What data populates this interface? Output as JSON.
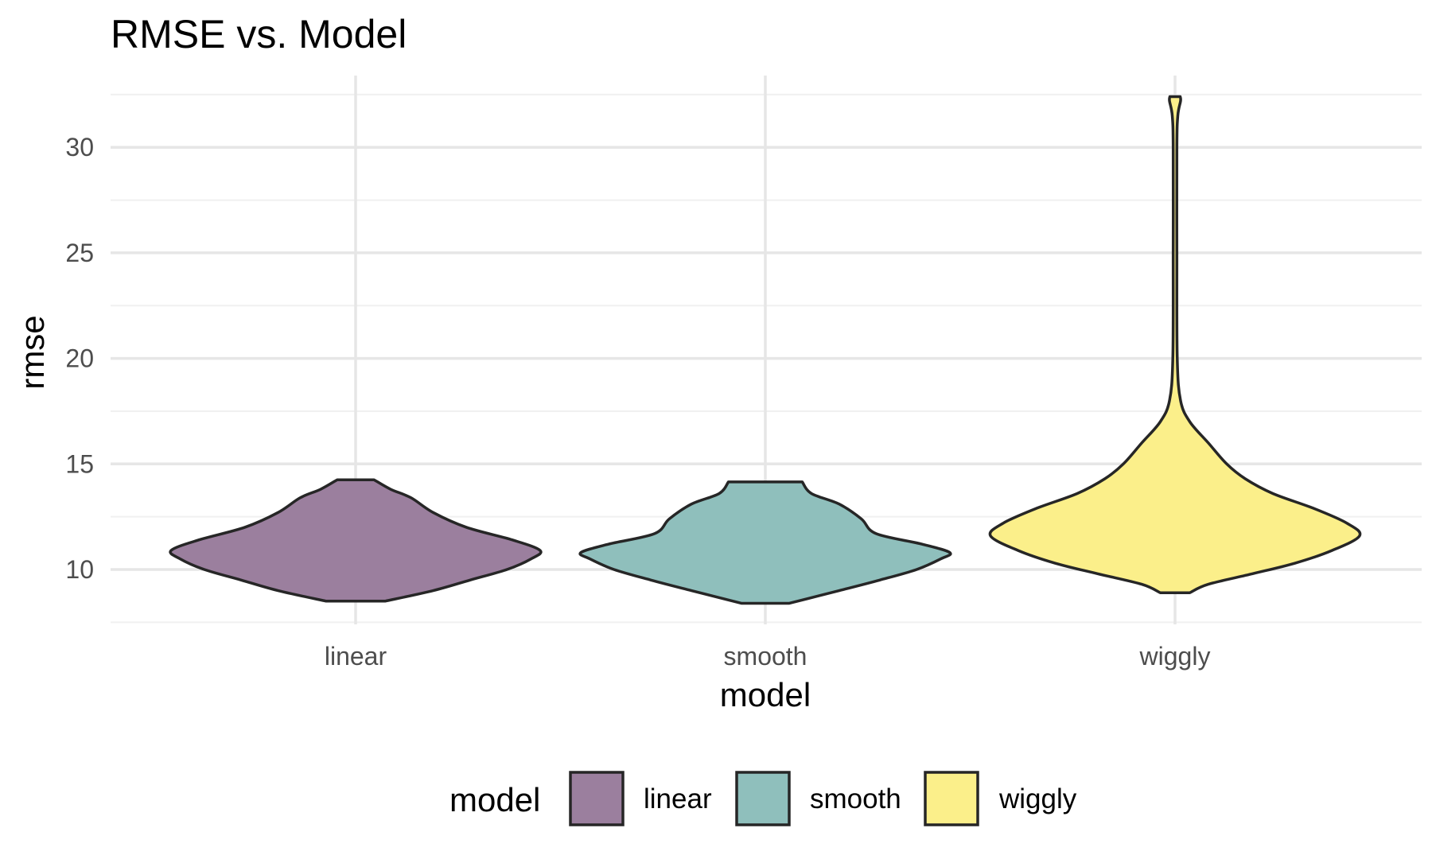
{
  "chart_data": {
    "type": "violin",
    "title": "RMSE vs. Model",
    "xlabel": "model",
    "ylabel": "rmse",
    "categories": [
      "linear",
      "smooth",
      "wiggly"
    ],
    "ylim": [
      7.4,
      33.4
    ],
    "yticks": [
      10,
      15,
      20,
      25,
      30
    ],
    "grid": true,
    "legend": {
      "title": "model",
      "position": "bottom",
      "entries": [
        "linear",
        "smooth",
        "wiggly"
      ]
    },
    "colors": {
      "linear": "#9B7F9E",
      "smooth": "#8FBFBC",
      "wiggly": "#FBEF8A",
      "outline": "#262626",
      "grid_major": "#E6E6E6",
      "grid_minor": "#F0F0F0",
      "tick_text": "#4D4D4D",
      "title_text": "#000000"
    },
    "series": [
      {
        "name": "linear",
        "ymin": 8.5,
        "ymax": 14.25,
        "density_profile": [
          [
            8.5,
            0.16
          ],
          [
            9.0,
            0.42
          ],
          [
            9.5,
            0.62
          ],
          [
            10.0,
            0.82
          ],
          [
            10.5,
            0.95
          ],
          [
            10.9,
            1.0
          ],
          [
            11.4,
            0.85
          ],
          [
            12.0,
            0.6
          ],
          [
            12.7,
            0.42
          ],
          [
            13.4,
            0.3
          ],
          [
            13.8,
            0.19
          ],
          [
            14.25,
            0.1
          ]
        ]
      },
      {
        "name": "smooth",
        "ymin": 8.4,
        "ymax": 14.15,
        "density_profile": [
          [
            8.4,
            0.13
          ],
          [
            9.0,
            0.4
          ],
          [
            9.5,
            0.62
          ],
          [
            10.0,
            0.82
          ],
          [
            10.5,
            0.95
          ],
          [
            10.8,
            1.0
          ],
          [
            11.2,
            0.85
          ],
          [
            11.7,
            0.6
          ],
          [
            12.4,
            0.52
          ],
          [
            13.1,
            0.4
          ],
          [
            13.6,
            0.25
          ],
          [
            14.15,
            0.2
          ]
        ]
      },
      {
        "name": "wiggly",
        "ymin": 8.9,
        "ymax": 32.4,
        "density_profile": [
          [
            8.9,
            0.08
          ],
          [
            9.3,
            0.18
          ],
          [
            9.8,
            0.42
          ],
          [
            10.3,
            0.65
          ],
          [
            10.9,
            0.85
          ],
          [
            11.6,
            1.0
          ],
          [
            12.2,
            0.93
          ],
          [
            12.9,
            0.75
          ],
          [
            13.6,
            0.53
          ],
          [
            14.3,
            0.38
          ],
          [
            15.0,
            0.28
          ],
          [
            16.0,
            0.18
          ],
          [
            17.0,
            0.08
          ],
          [
            18.0,
            0.03
          ],
          [
            20.0,
            0.012
          ],
          [
            25.0,
            0.01
          ],
          [
            30.0,
            0.01
          ],
          [
            31.5,
            0.015
          ],
          [
            32.2,
            0.03
          ],
          [
            32.4,
            0.028
          ]
        ]
      }
    ]
  }
}
